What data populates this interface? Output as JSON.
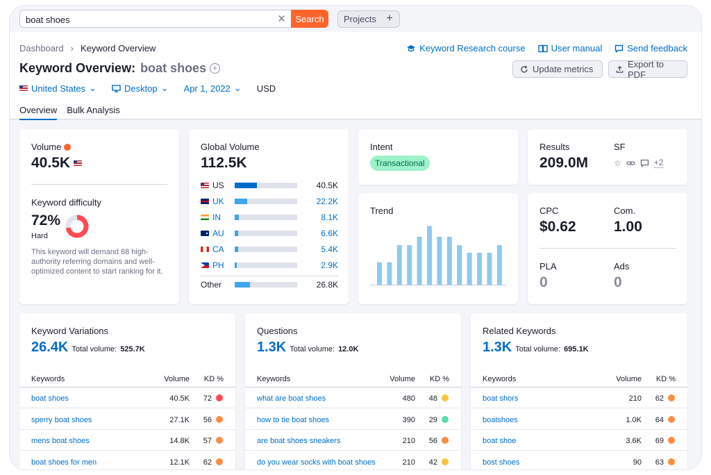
{
  "search": {
    "value": "boat shoes",
    "button_label": "Search",
    "clear_icon": "close-icon"
  },
  "projects": {
    "label": "Projects",
    "plus": "+"
  },
  "breadcrumb": {
    "root": "Dashboard",
    "current": "Keyword Overview"
  },
  "toplinks": {
    "course": "Keyword Research course",
    "manual": "User manual",
    "feedback": "Send feedback"
  },
  "title": {
    "prefix": "Keyword Overview:",
    "keyword": "boat shoes"
  },
  "buttons": {
    "update": "Update metrics",
    "export": "Export to PDF"
  },
  "filters": {
    "country": "United States",
    "device": "Desktop",
    "date": "Apr 1, 2022",
    "currency": "USD"
  },
  "tabs": {
    "overview": "Overview",
    "bulk": "Bulk Analysis"
  },
  "volume": {
    "label": "Volume",
    "value": "40.5K",
    "dot_color": "#ff642d"
  },
  "difficulty": {
    "label": "Keyword difficulty",
    "value": "72%",
    "level": "Hard",
    "percent": 72,
    "description": "This keyword will demand 68 high-authority referring domains and well-optimized content to start ranking for it."
  },
  "global_volume": {
    "label": "Global Volume",
    "value": "112.5K",
    "rows": [
      {
        "country": "US",
        "value": "40.5K",
        "share": 0.36,
        "flag": "flag-us",
        "highlight": false
      },
      {
        "country": "UK",
        "value": "22.2K",
        "share": 0.2,
        "flag": "flag-uk",
        "highlight": true
      },
      {
        "country": "IN",
        "value": "8.1K",
        "share": 0.07,
        "flag": "flag-in",
        "highlight": true
      },
      {
        "country": "AU",
        "value": "6.6K",
        "share": 0.06,
        "flag": "flag-au",
        "highlight": true
      },
      {
        "country": "CA",
        "value": "5.4K",
        "share": 0.05,
        "flag": "flag-ca",
        "highlight": true
      },
      {
        "country": "PH",
        "value": "2.9K",
        "share": 0.03,
        "flag": "flag-ph",
        "highlight": true
      }
    ],
    "other": {
      "label": "Other",
      "value": "26.8K",
      "share": 0.24
    }
  },
  "intent": {
    "label": "Intent",
    "value": "Transactional"
  },
  "results": {
    "label": "Results",
    "value": "209.0M",
    "sf_label": "SF",
    "sf_more": "+2"
  },
  "trend": {
    "label": "Trend",
    "chart_data": {
      "type": "bar",
      "values": [
        35,
        35,
        62,
        62,
        75,
        92,
        75,
        75,
        62,
        50,
        50,
        50,
        62
      ]
    }
  },
  "cpc": {
    "label": "CPC",
    "value": "$0.62"
  },
  "competition": {
    "label": "Com.",
    "value": "1.00"
  },
  "pla": {
    "label": "PLA",
    "value": "0"
  },
  "ads": {
    "label": "Ads",
    "value": "0"
  },
  "colors": {
    "red": "#ff4953",
    "orange": "#ff8c43",
    "yellow": "#fdc23c",
    "green": "#59ddaa",
    "accent": "#006dca"
  },
  "table_headers": {
    "keywords": "Keywords",
    "volume": "Volume",
    "kd": "KD %"
  },
  "total_volume_label": "Total volume:",
  "variations": {
    "title": "Keyword Variations",
    "count": "26.4K",
    "total": "525.7K",
    "rows": [
      {
        "keyword": "boat shoes",
        "volume": "40.5K",
        "kd": "72",
        "color": "#ff4953"
      },
      {
        "keyword": "sperry boat shoes",
        "volume": "27.1K",
        "kd": "56",
        "color": "#ff8c43"
      },
      {
        "keyword": "mens boat shoes",
        "volume": "14.8K",
        "kd": "57",
        "color": "#ff8c43"
      },
      {
        "keyword": "boat shoes for men",
        "volume": "12.1K",
        "kd": "62",
        "color": "#ff8c43"
      }
    ]
  },
  "questions": {
    "title": "Questions",
    "count": "1.3K",
    "total": "12.0K",
    "rows": [
      {
        "keyword": "what are boat shoes",
        "volume": "480",
        "kd": "48",
        "color": "#fdc23c"
      },
      {
        "keyword": "how to tie boat shoes",
        "volume": "390",
        "kd": "29",
        "color": "#59ddaa"
      },
      {
        "keyword": "are boat shoes sneakers",
        "volume": "210",
        "kd": "56",
        "color": "#ff8c43"
      },
      {
        "keyword": "do you wear socks with boat shoes",
        "volume": "210",
        "kd": "42",
        "color": "#fdc23c"
      }
    ]
  },
  "related": {
    "title": "Related Keywords",
    "count": "1.3K",
    "total": "695.1K",
    "rows": [
      {
        "keyword": "boat shors",
        "volume": "210",
        "kd": "62",
        "color": "#ff8c43"
      },
      {
        "keyword": "boatshoes",
        "volume": "1.0K",
        "kd": "64",
        "color": "#ff8c43"
      },
      {
        "keyword": "boat shoe",
        "volume": "3.6K",
        "kd": "69",
        "color": "#ff8c43"
      },
      {
        "keyword": "bost shoes",
        "volume": "90",
        "kd": "63",
        "color": "#ff8c43"
      }
    ]
  }
}
